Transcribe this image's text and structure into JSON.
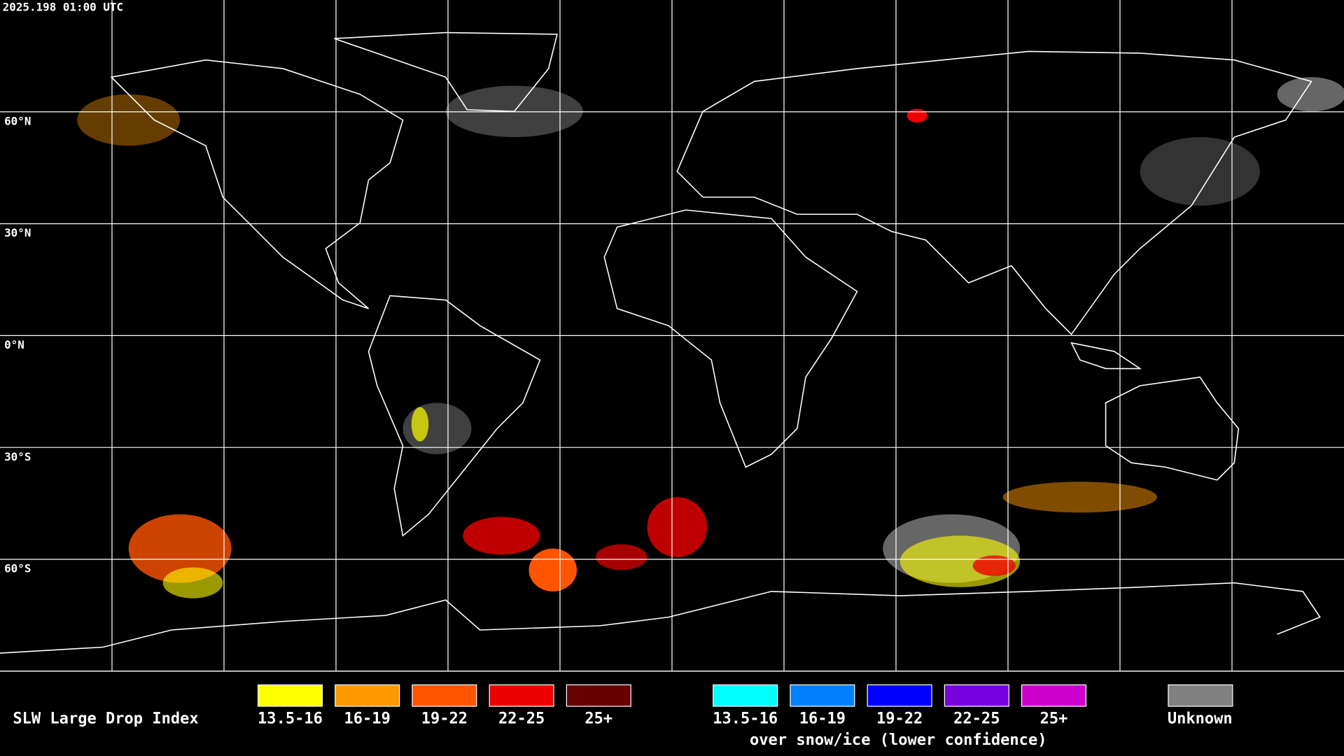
{
  "header": {
    "timestamp": "2025.198 01:00 UTC"
  },
  "map": {
    "latitude_labels": [
      "60°N",
      "30°N",
      "0°N",
      "30°S",
      "60°S"
    ]
  },
  "legend": {
    "title": "SLW Large Drop Index",
    "groups": [
      {
        "items": [
          {
            "label": "13.5-16",
            "color": "#ffff00"
          },
          {
            "label": "16-19",
            "color": "#ff9900"
          },
          {
            "label": "19-22",
            "color": "#ff5500"
          },
          {
            "label": "22-25",
            "color": "#ee0000"
          },
          {
            "label": "25+",
            "color": "#660000"
          }
        ]
      },
      {
        "items": [
          {
            "label": "13.5-16",
            "color": "#00ffff"
          },
          {
            "label": "16-19",
            "color": "#0080ff"
          },
          {
            "label": "19-22",
            "color": "#0000ff"
          },
          {
            "label": "22-25",
            "color": "#7700dd"
          },
          {
            "label": "25+",
            "color": "#cc00cc"
          }
        ],
        "note": "over snow/ice (lower confidence)"
      }
    ],
    "unknown": {
      "label": "Unknown",
      "color": "#808080"
    }
  }
}
